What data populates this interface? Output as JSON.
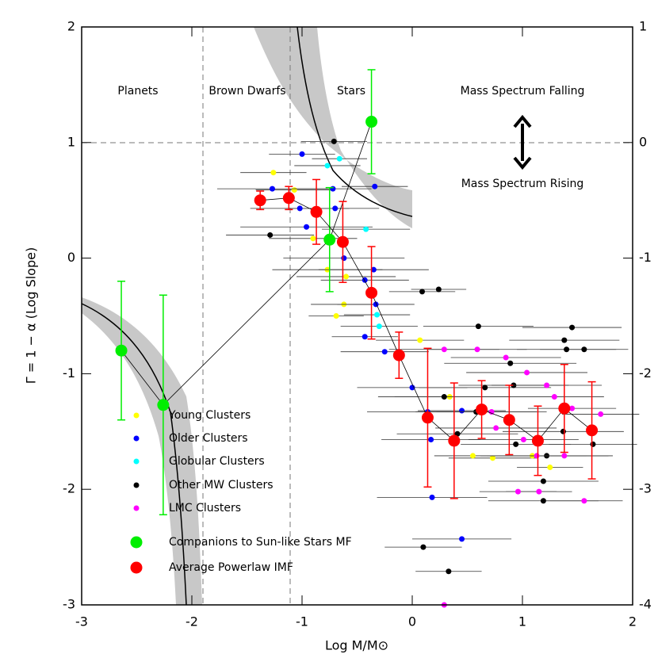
{
  "chart_data": {
    "type": "scatter",
    "xlabel": "Log M/M⊙",
    "ylabel": "Γ = 1 − α (Log Slope)",
    "xlim": [
      -3,
      2
    ],
    "ylim": [
      -3,
      2
    ],
    "y2lim": [
      -4,
      1
    ],
    "xticks": [
      -3,
      -2,
      -1,
      0,
      1,
      2
    ],
    "yticks": [
      -3,
      -2,
      -1,
      0,
      1,
      2
    ],
    "y2ticks": [
      -4,
      -3,
      -2,
      -1,
      0,
      1
    ],
    "annotations": [
      "Planets",
      "Brown Dwarfs",
      "Stars",
      "Mass Spectrum Falling",
      "Mass Spectrum Rising"
    ],
    "series": [
      {
        "name": "Young Clusters",
        "color": "#ffff00",
        "marker": "small",
        "x": [
          -1.26,
          -1.07,
          -0.9,
          -0.77,
          -0.6,
          -0.62,
          -0.69,
          0.07,
          0.34,
          0.55,
          0.73,
          1.09,
          1.25
        ],
        "y": [
          0.74,
          0.59,
          0.17,
          -0.1,
          -0.16,
          -0.4,
          -0.5,
          -0.71,
          -1.2,
          -1.71,
          -1.73,
          -1.71,
          -1.81
        ],
        "xerr": [
          0.3,
          0.35,
          0.4,
          0.5,
          0.45,
          0.3,
          0.25,
          0.4,
          0.5,
          0.35,
          0.4,
          0.35,
          0.3
        ]
      },
      {
        "name": "Older Clusters",
        "color": "#0000ff",
        "marker": "small",
        "x": [
          -1.0,
          -1.27,
          -0.96,
          -1.02,
          -0.7,
          -0.72,
          -0.34,
          -0.62,
          -0.43,
          -0.35,
          -0.33,
          -0.43,
          -0.25,
          0.0,
          0.14,
          0.17,
          0.45,
          0.18,
          0.45
        ],
        "y": [
          0.9,
          0.6,
          0.27,
          0.43,
          0.43,
          0.6,
          0.62,
          0.0,
          -0.19,
          -0.1,
          -0.4,
          -0.68,
          -0.81,
          -1.12,
          -1.33,
          -1.57,
          -1.32,
          -2.07,
          -2.43
        ],
        "xerr": [
          0.3,
          0.5,
          0.6,
          0.45,
          0.4,
          0.35,
          0.3,
          0.55,
          0.4,
          0.5,
          0.35,
          0.3,
          0.4,
          0.5,
          0.55,
          0.45,
          0.4,
          0.5,
          0.45
        ]
      },
      {
        "name": "Globular Clusters",
        "color": "#00ffff",
        "marker": "small",
        "x": [
          -0.77,
          -0.66,
          -0.42,
          -0.3,
          -0.32
        ],
        "y": [
          0.8,
          0.86,
          0.25,
          -0.59,
          -0.49
        ],
        "xerr": [
          0.3,
          0.25,
          0.4,
          0.35,
          0.3
        ]
      },
      {
        "name": "Other MW Clusters",
        "color": "#000000",
        "marker": "small",
        "x": [
          -1.29,
          -0.71,
          0.09,
          0.24,
          0.6,
          0.89,
          1.38,
          1.45,
          1.56,
          0.29,
          0.58,
          0.94,
          1.22,
          1.37,
          1.19,
          1.4,
          1.64,
          1.19,
          0.1,
          0.33,
          0.41,
          0.66,
          0.92
        ],
        "y": [
          0.2,
          1.01,
          -0.29,
          -0.27,
          -0.59,
          -0.91,
          -0.71,
          -0.6,
          -0.79,
          -1.2,
          -1.33,
          -1.61,
          -1.71,
          -1.5,
          -1.93,
          -0.79,
          -1.61,
          -2.1,
          -2.5,
          -2.71,
          -1.52,
          -1.12,
          -1.1
        ],
        "xerr": [
          0.4,
          0.3,
          0.3,
          0.25,
          0.5,
          0.6,
          0.5,
          0.45,
          0.4,
          0.6,
          0.55,
          0.5,
          0.6,
          0.55,
          0.5,
          0.45,
          0.4,
          0.5,
          0.35,
          0.3,
          0.55,
          0.6,
          0.5
        ]
      },
      {
        "name": "LMC Clusters",
        "color": "#ff00ff",
        "marker": "small",
        "x": [
          0.29,
          0.59,
          0.85,
          1.04,
          1.22,
          1.29,
          1.45,
          1.71,
          0.76,
          1.01,
          1.13,
          1.38,
          0.96,
          1.15,
          1.56,
          0.29,
          0.72
        ],
        "y": [
          -0.79,
          -0.79,
          -0.86,
          -0.99,
          -1.1,
          -1.2,
          -1.3,
          -1.35,
          -1.47,
          -1.57,
          -1.71,
          -1.71,
          -2.02,
          -2.02,
          -2.1,
          -3.0,
          -1.33
        ],
        "xerr": [
          0.5,
          0.45,
          0.5,
          0.55,
          0.5,
          0.45,
          0.4,
          0.35,
          0.55,
          0.5,
          0.45,
          0.4,
          0.35,
          0.3,
          0.35,
          0.3,
          0.5
        ]
      },
      {
        "name": "Companions to Sun-like Stars MF",
        "color": "#00ee00",
        "marker": "large",
        "connect": true,
        "x": [
          -2.64,
          -2.26,
          -0.75,
          -0.37
        ],
        "y": [
          -0.8,
          -1.27,
          0.16,
          1.18
        ],
        "yerr": [
          0.6,
          0.95,
          0.45,
          0.45
        ]
      },
      {
        "name": "Average Powerlaw IMF",
        "color": "#ff0000",
        "marker": "large",
        "connect": true,
        "x": [
          -1.38,
          -1.12,
          -0.87,
          -0.63,
          -0.37,
          -0.12,
          0.14,
          0.38,
          0.63,
          0.88,
          1.14,
          1.38,
          1.63
        ],
        "y": [
          0.5,
          0.52,
          0.4,
          0.14,
          -0.3,
          -0.84,
          -1.38,
          -1.58,
          -1.31,
          -1.4,
          -1.58,
          -1.3,
          -1.49
        ],
        "yerr": [
          0.08,
          0.1,
          0.28,
          0.35,
          0.4,
          0.2,
          0.6,
          0.5,
          0.25,
          0.3,
          0.3,
          0.38,
          0.42
        ]
      }
    ]
  }
}
